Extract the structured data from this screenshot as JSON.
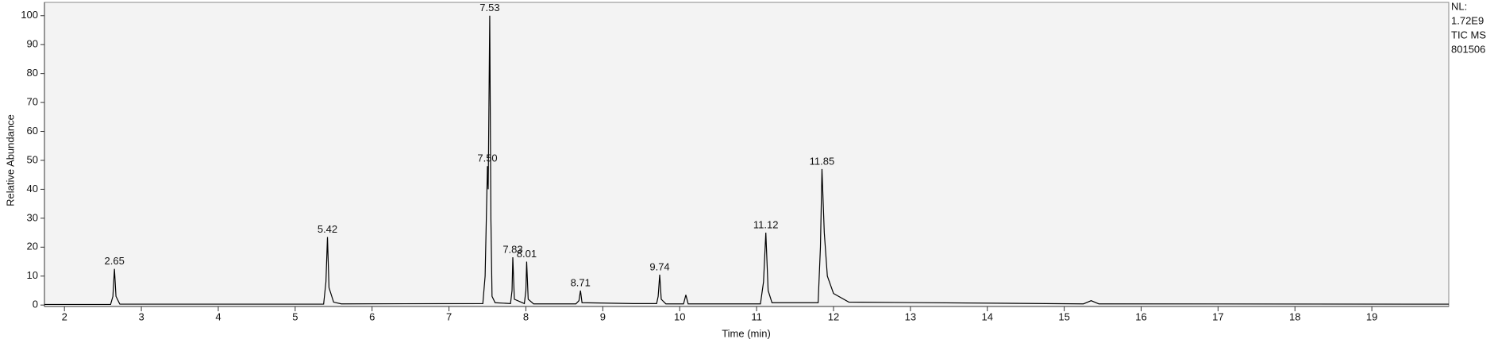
{
  "chart_data": {
    "type": "line",
    "x_label": "Time (min)",
    "y_label": "Relative Abundance",
    "info": [
      "NL:",
      "1.72E9",
      "TIC  MS",
      "801506"
    ],
    "xlim": [
      1.74,
      20.0
    ],
    "ylim": [
      -0.5,
      104.6
    ],
    "xticks": [
      2,
      3,
      4,
      5,
      6,
      7,
      8,
      9,
      10,
      11,
      12,
      13,
      14,
      15,
      16,
      17,
      18,
      19
    ],
    "yticks": [
      0,
      10,
      20,
      30,
      40,
      50,
      60,
      70,
      80,
      90,
      100
    ],
    "grid": false,
    "background": "#f3f3f3",
    "series": [
      {
        "color": "#000000",
        "x": [
          1.74,
          2.6,
          2.63,
          2.65,
          2.67,
          2.72,
          5.37,
          5.4,
          5.42,
          5.44,
          5.5,
          5.6,
          7.44,
          7.47,
          7.5,
          7.51,
          7.53,
          7.545,
          7.56,
          7.6,
          7.8,
          7.82,
          7.83,
          7.85,
          7.98,
          8.0,
          8.01,
          8.03,
          8.1,
          8.65,
          8.69,
          8.71,
          8.73,
          9.4,
          9.7,
          9.72,
          9.74,
          9.76,
          9.82,
          10.05,
          10.08,
          10.11,
          11.05,
          11.09,
          11.12,
          11.15,
          11.2,
          11.8,
          11.83,
          11.85,
          11.88,
          11.92,
          12.0,
          12.2,
          15.25,
          15.35,
          15.45,
          20.0
        ],
        "values": [
          0.2,
          0.2,
          3,
          12.5,
          3,
          0.3,
          0.3,
          8,
          23.5,
          6,
          1,
          0.4,
          0.5,
          10,
          48,
          40,
          100,
          30,
          3,
          0.8,
          0.5,
          5,
          16.5,
          2,
          0.5,
          5,
          15,
          2,
          0.4,
          0.4,
          1.5,
          5,
          0.8,
          0.5,
          0.5,
          3,
          10.5,
          2,
          0.4,
          0.4,
          3.5,
          0.4,
          0.4,
          8,
          25,
          5,
          0.8,
          0.8,
          20,
          47,
          25,
          10,
          4,
          1,
          0.4,
          1.5,
          0.4,
          0.3
        ]
      }
    ],
    "peaks": [
      {
        "time": 2.65,
        "label": "2.65",
        "abundance": 12.5
      },
      {
        "time": 5.42,
        "label": "5.42",
        "abundance": 23.5
      },
      {
        "time": 7.5,
        "label": "7.50",
        "abundance": 48
      },
      {
        "time": 7.53,
        "label": "7.53",
        "abundance": 100
      },
      {
        "time": 7.83,
        "label": "7.83",
        "abundance": 16.5
      },
      {
        "time": 8.01,
        "label": "8.01",
        "abundance": 15
      },
      {
        "time": 8.71,
        "label": "8.71",
        "abundance": 5
      },
      {
        "time": 9.74,
        "label": "9.74",
        "abundance": 10.5
      },
      {
        "time": 11.12,
        "label": "11.12",
        "abundance": 25
      },
      {
        "time": 11.85,
        "label": "11.85",
        "abundance": 47
      }
    ]
  }
}
